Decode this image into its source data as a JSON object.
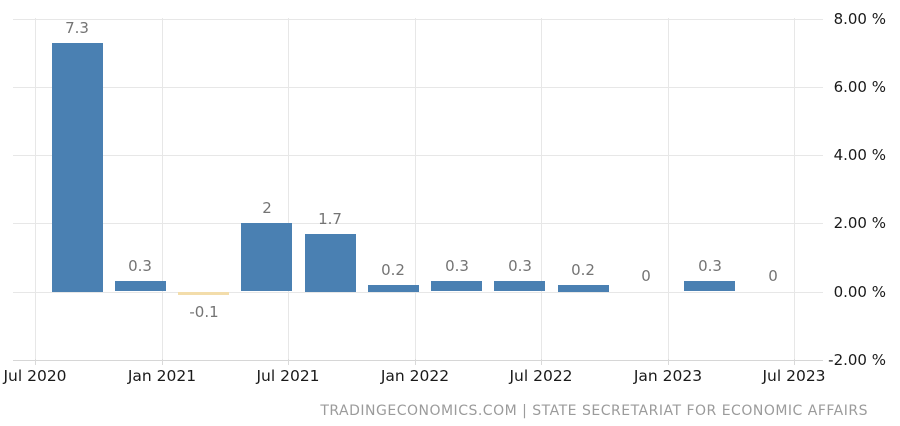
{
  "chart_data": {
    "type": "bar",
    "title": "",
    "x_tick_labels": [
      "Jul 2020",
      "Jan 2021",
      "Jul 2021",
      "Jan 2022",
      "Jul 2022",
      "Jan 2023",
      "Jul 2023"
    ],
    "y_tick_values": [
      8,
      6,
      4,
      2,
      0,
      -2
    ],
    "y_tick_labels": [
      "8.00 %",
      "6.00 %",
      "4.00 %",
      "2.00 %",
      "0.00 %",
      "-2.00 %"
    ],
    "ylim": [
      -2,
      8
    ],
    "grid": true,
    "legend": false,
    "xlabel": "",
    "ylabel": "",
    "bar_values": [
      7.3,
      0.3,
      -0.1,
      2,
      1.7,
      0.2,
      0.3,
      0.3,
      0.2,
      0,
      0.3,
      0
    ],
    "bar_labels": [
      "7.3",
      "0.3",
      "-0.1",
      "2",
      "1.7",
      "0.2",
      "0.3",
      "0.3",
      "0.2",
      "0",
      "0.3",
      "0"
    ],
    "colors": {
      "positive_bar": "#4a80b2",
      "negative_bar": "#f3ddab",
      "grid": "#e7e7e7",
      "axis_line": "#d6d6d6",
      "tick_stub": "#d9d9d9",
      "value_label": "#747474",
      "axis_label": "#1a1a1a",
      "footer": "#9b9b9b",
      "background": "#ffffff"
    }
  },
  "footer": {
    "text": "TRADINGECONOMICS.COM | STATE SECRETARIAT FOR ECONOMIC AFFAIRS"
  }
}
